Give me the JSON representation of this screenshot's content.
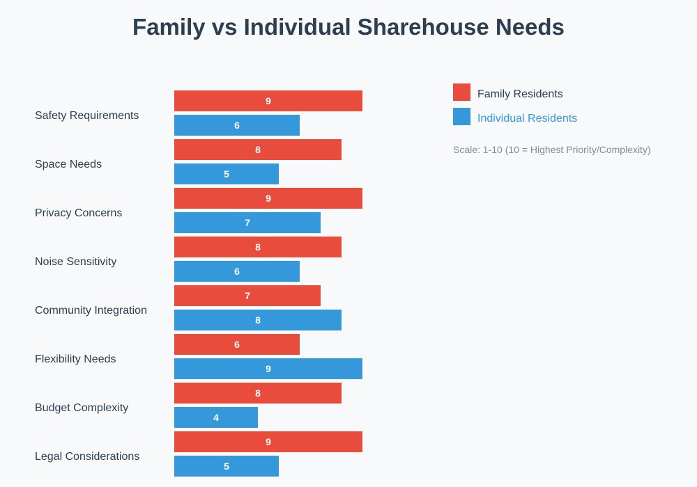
{
  "chart_data": {
    "type": "bar",
    "orientation": "horizontal",
    "title": "Family vs Individual Sharehouse Needs",
    "categories": [
      "Safety Requirements",
      "Space Needs",
      "Privacy Concerns",
      "Noise Sensitivity",
      "Community Integration",
      "Flexibility Needs",
      "Budget Complexity",
      "Legal Considerations"
    ],
    "series": [
      {
        "name": "Family Residents",
        "color": "#e74c3c",
        "values": [
          9,
          8,
          9,
          8,
          7,
          6,
          8,
          9
        ]
      },
      {
        "name": "Individual Residents",
        "color": "#3498db",
        "values": [
          6,
          5,
          7,
          6,
          8,
          9,
          4,
          5
        ]
      }
    ],
    "xlim": [
      0,
      10
    ],
    "grid": false,
    "legend_position": "top-right",
    "note": "Scale: 1-10 (10 = Highest Priority/Complexity)"
  }
}
